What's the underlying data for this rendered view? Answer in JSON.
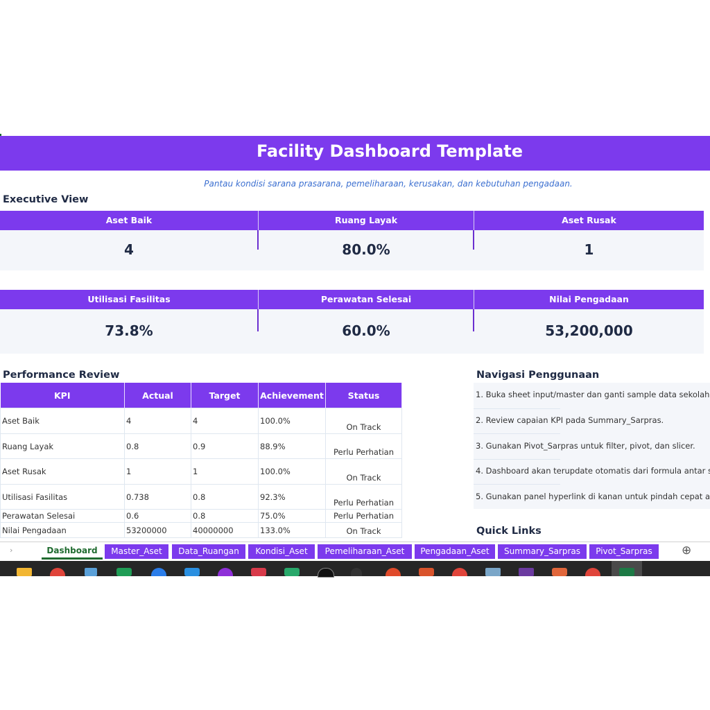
{
  "header": {
    "title": "Facility Dashboard Template",
    "subtitle": "Pantau kondisi sarana prasarana, pemeliharaan, kerusakan, dan kebutuhan pengadaan."
  },
  "executive": {
    "section_title": "Executive View",
    "row1": [
      {
        "label": "Aset Baik",
        "value": "4"
      },
      {
        "label": "Ruang Layak",
        "value": "80.0%"
      },
      {
        "label": "Aset Rusak",
        "value": "1"
      }
    ],
    "row2": [
      {
        "label": "Utilisasi Fasilitas",
        "value": "73.8%"
      },
      {
        "label": "Perawatan Selesai",
        "value": "60.0%"
      },
      {
        "label": "Nilai Pengadaan",
        "value": "53,200,000"
      }
    ]
  },
  "performance": {
    "section_title": "Performance Review",
    "columns": [
      "KPI",
      "Actual",
      "Target",
      "Achievement",
      "Status"
    ],
    "rows": [
      [
        "Aset Baik",
        "4",
        "4",
        "100.0%",
        "On Track"
      ],
      [
        "Ruang Layak",
        "0.8",
        "0.9",
        "88.9%",
        "Perlu Perhatian"
      ],
      [
        "Aset Rusak",
        "1",
        "1",
        "100.0%",
        "On Track"
      ],
      [
        "Utilisasi Fasilitas",
        "0.738",
        "0.8",
        "92.3%",
        "Perlu Perhatian"
      ],
      [
        "Perawatan Selesai",
        "0.6",
        "0.8",
        "75.0%",
        "Perlu Perhatian"
      ],
      [
        "Nilai Pengadaan",
        "53200000",
        "40000000",
        "133.0%",
        "On Track"
      ]
    ]
  },
  "navigation": {
    "section_title": "Navigasi Penggunaan",
    "items": [
      "1. Buka sheet input/master dan ganti sample data sekolah.",
      "2. Review capaian KPI pada Summary_Sarpras.",
      "3. Gunakan Pivot_Sarpras untuk filter, pivot, dan slicer.",
      "4. Dashboard akan terupdate otomatis dari formula antar s",
      "5. Gunakan panel hyperlink di kanan untuk pindah cepat an"
    ],
    "quick_links_title": "Quick Links"
  },
  "sheet_tabs": {
    "active": "Dashboard",
    "tabs": [
      "Dashboard",
      "Master_Aset",
      "Data_Ruangan",
      "Kondisi_Aset",
      "Pemeliharaan_Aset",
      "Pengadaan_Aset",
      "Summary_Sarpras",
      "Pivot_Sarpras"
    ],
    "add_sheet_symbol": "⊕",
    "scroll_symbol": "›"
  },
  "colors": {
    "accent": "#7c3aed",
    "header_text": "#ffffff",
    "value_text": "#1f2a44",
    "subtitle_text": "#3b6fd0",
    "panel_bg": "#f4f6fa"
  },
  "taskbar": {
    "icons": [
      "file-explorer-icon",
      "chrome-icon",
      "network-app-icon",
      "green-app-icon",
      "blue-round-app-icon",
      "vscode-icon",
      "purple-app-icon",
      "red-app-icon",
      "green-code-app-icon",
      "black-app-icon",
      "dark-app-icon",
      "orange-app-icon",
      "powerpoint-icon",
      "chrome-icon-2",
      "notes-app-icon",
      "purple-app-icon-2",
      "orange-app-icon-2",
      "chrome-icon-3",
      "excel-icon"
    ]
  }
}
